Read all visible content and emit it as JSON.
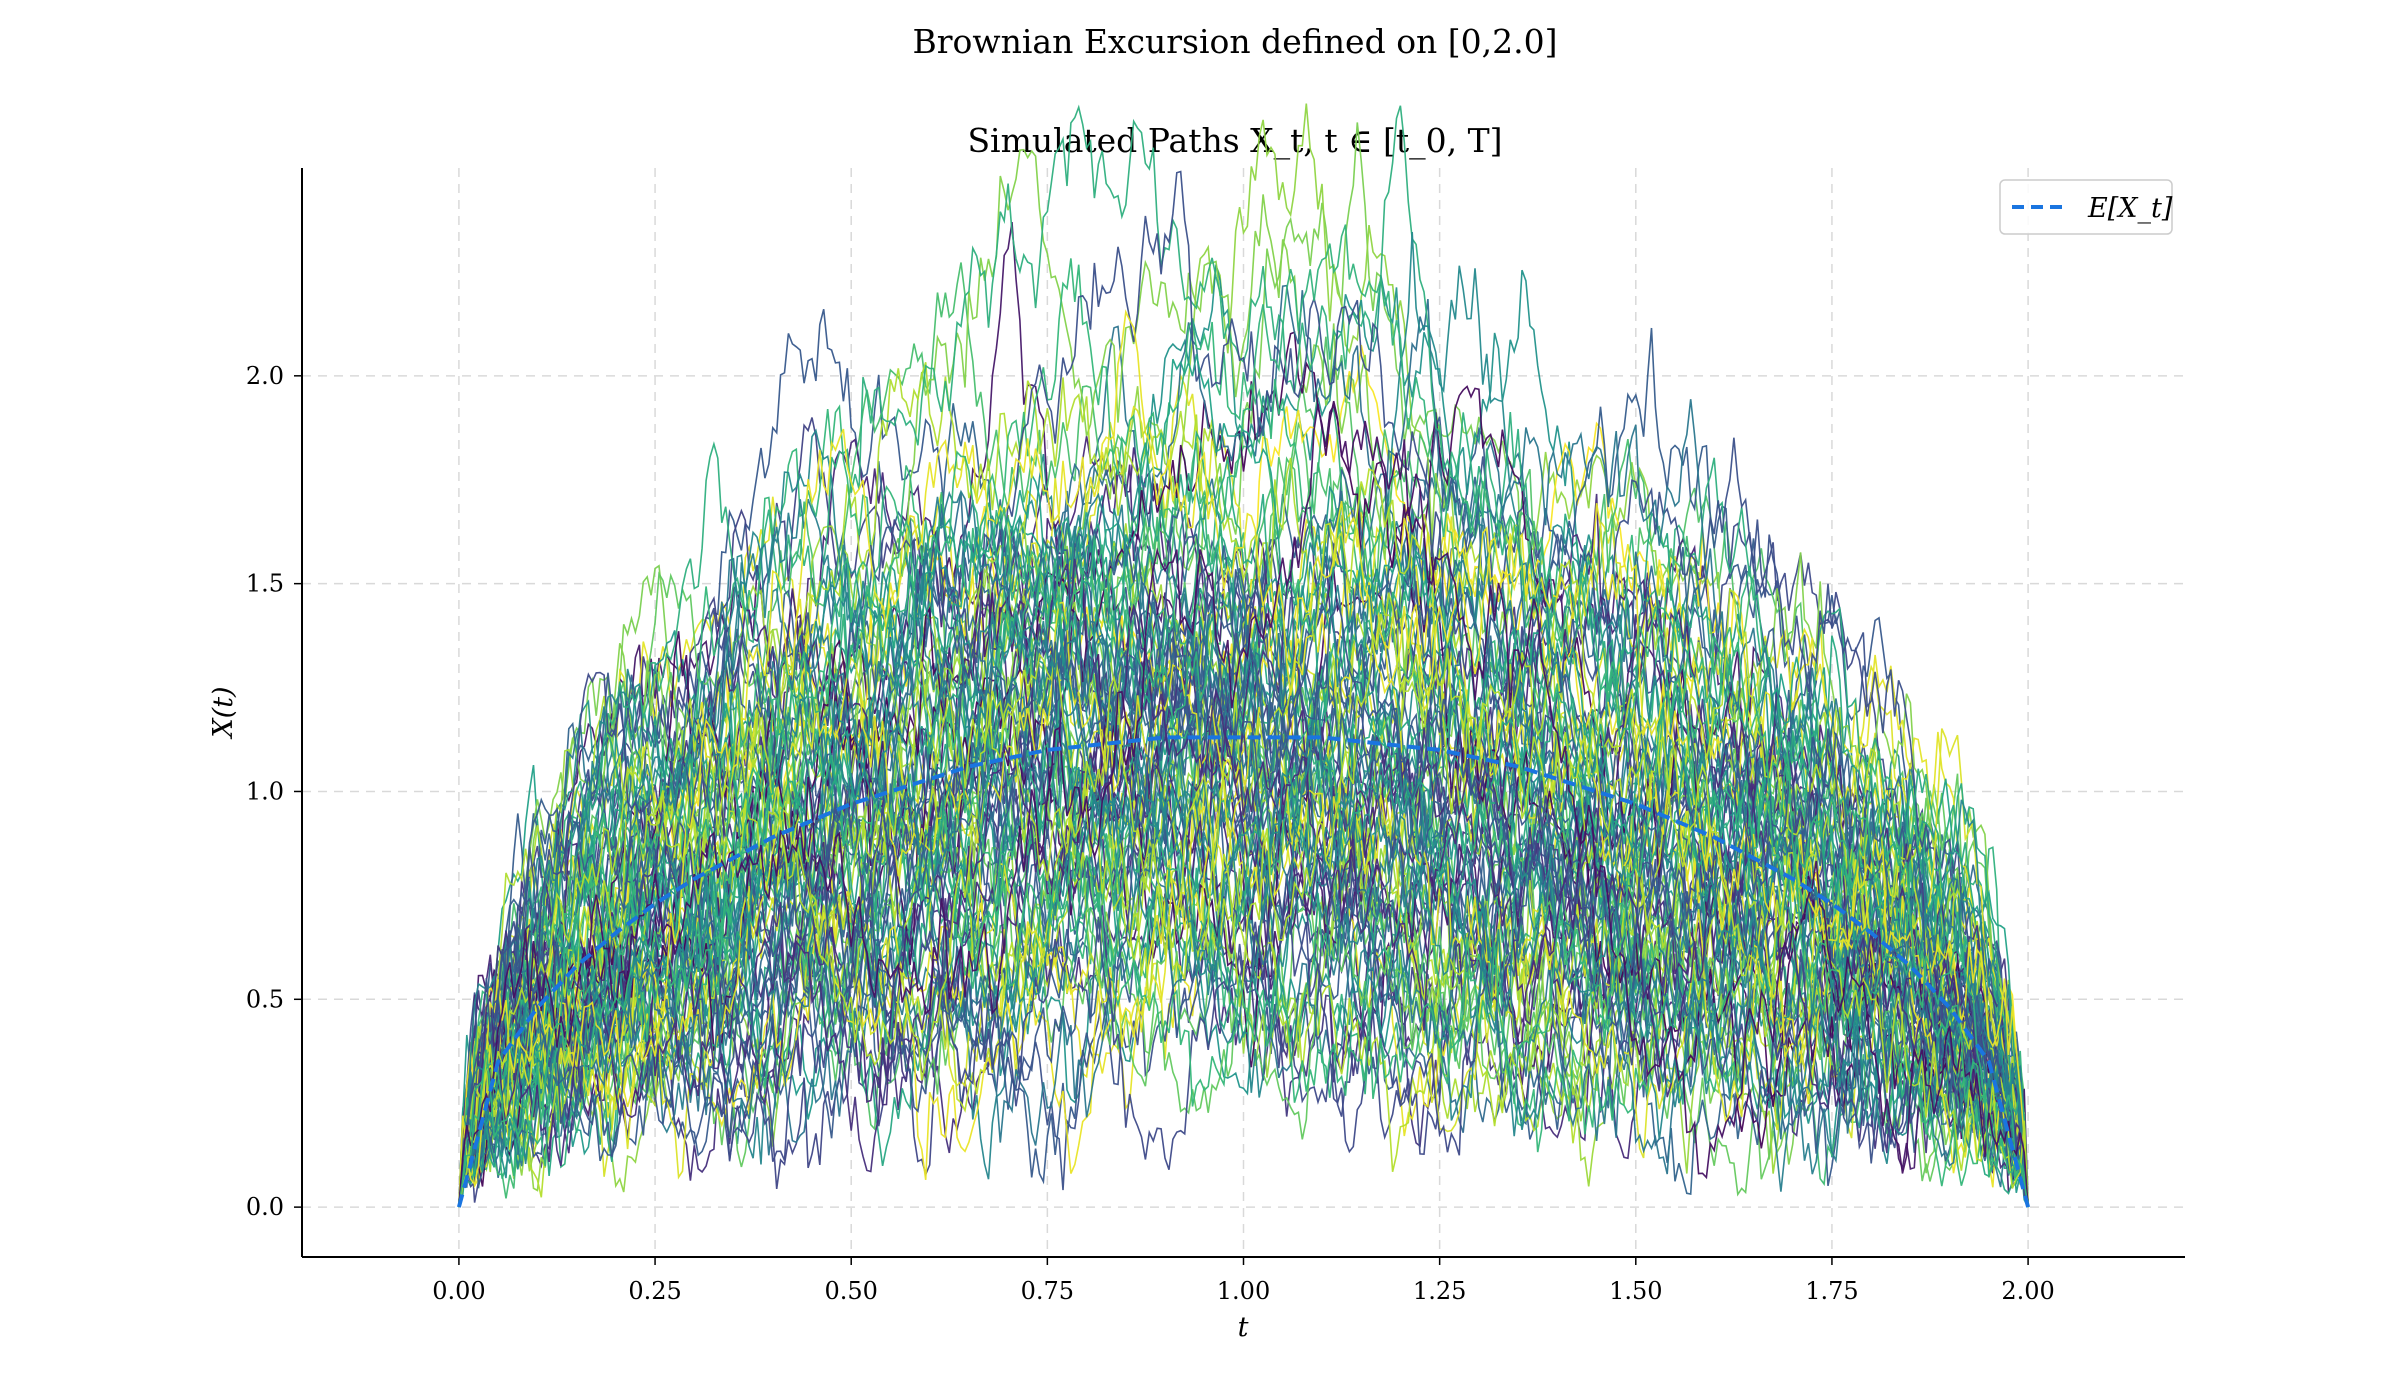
{
  "chart_data": {
    "type": "line",
    "title": "Brownian Excursion defined on [0,2.0]",
    "subtitle": "Simulated Paths X_t, t ∈ [t_0, T]",
    "xlabel": "t",
    "ylabel": "X(t)",
    "xlim": [
      -0.2,
      2.2
    ],
    "ylim": [
      -0.12,
      2.5
    ],
    "x_ticks": [
      0.0,
      0.25,
      0.5,
      0.75,
      1.0,
      1.25,
      1.5,
      1.75,
      2.0
    ],
    "x_tick_labels": [
      "0.00",
      "0.25",
      "0.50",
      "0.75",
      "1.00",
      "1.25",
      "1.50",
      "1.75",
      "2.00"
    ],
    "y_ticks": [
      0.0,
      0.5,
      1.0,
      1.5,
      2.0
    ],
    "y_tick_labels": [
      "0.0",
      "0.5",
      "1.0",
      "1.5",
      "2.0"
    ],
    "grid": true,
    "legend": {
      "placement": "top-right",
      "entries": [
        "E[X_t]"
      ]
    },
    "paths": {
      "count": 100,
      "t0": 0.0,
      "T": 2.0,
      "steps": 400,
      "colormap": "viridis"
    },
    "mean": {
      "name": "E[X_t]",
      "color": "#1a75e0",
      "x": [
        0.0,
        0.05,
        0.1,
        0.15,
        0.2,
        0.25,
        0.3,
        0.35,
        0.4,
        0.45,
        0.5,
        0.55,
        0.6,
        0.65,
        0.7,
        0.75,
        0.8,
        0.85,
        0.9,
        0.95,
        1.0,
        1.05,
        1.1,
        1.15,
        1.2,
        1.25,
        1.3,
        1.35,
        1.4,
        1.45,
        1.5,
        1.55,
        1.6,
        1.65,
        1.7,
        1.75,
        1.8,
        1.85,
        1.9,
        1.95,
        2.0
      ],
      "y": [
        0.0,
        0.35,
        0.48,
        0.58,
        0.66,
        0.73,
        0.79,
        0.84,
        0.89,
        0.93,
        0.97,
        1.0,
        1.03,
        1.06,
        1.08,
        1.1,
        1.11,
        1.12,
        1.13,
        1.13,
        1.13,
        1.13,
        1.13,
        1.12,
        1.11,
        1.1,
        1.08,
        1.06,
        1.03,
        1.0,
        0.97,
        0.93,
        0.89,
        0.84,
        0.79,
        0.73,
        0.66,
        0.58,
        0.48,
        0.35,
        0.0
      ]
    }
  }
}
